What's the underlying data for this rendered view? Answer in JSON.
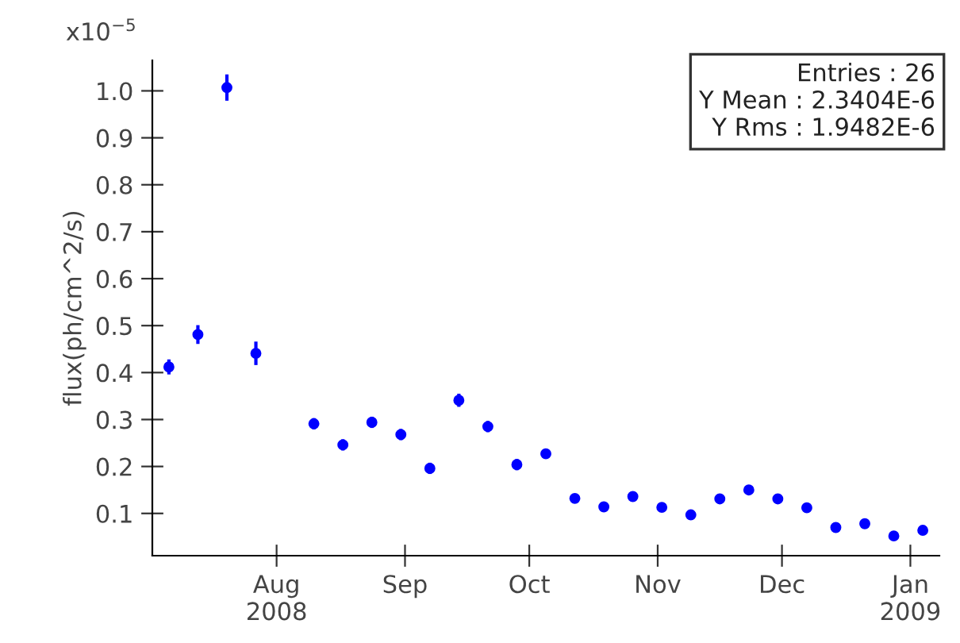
{
  "chart_data": {
    "type": "scatter",
    "ylabel": "flux(ph/cm^2/s)",
    "annotations": [
      "x10$^{−5}$",
      "Entries : 26",
      "Y Mean : 2.3404E-6",
      "Y Rms : 1.9482E-6"
    ],
    "x": [
      "2008-07-06",
      "2008-07-13",
      "2008-07-20",
      "2008-07-27",
      "2008-08-10",
      "2008-08-17",
      "2008-08-24",
      "2008-08-31",
      "2008-09-07",
      "2008-09-14",
      "2008-09-21",
      "2008-09-28",
      "2008-10-05",
      "2008-10-12",
      "2008-10-19",
      "2008-10-26",
      "2008-11-02",
      "2008-11-09",
      "2008-11-16",
      "2008-11-23",
      "2008-11-30",
      "2008-12-07",
      "2008-12-14",
      "2008-12-21",
      "2008-12-28",
      "2009-01-04"
    ],
    "series": [
      {
        "color": "#0000ff",
        "values": [
          0.412,
          0.481,
          1.007,
          0.441,
          0.291,
          0.246,
          0.294,
          0.268,
          0.196,
          0.341,
          0.285,
          0.204,
          0.227,
          0.132,
          0.114,
          0.136,
          0.113,
          0.097,
          0.131,
          0.15,
          0.131,
          0.112,
          0.07,
          0.078,
          0.052,
          0.064
        ],
        "errors": [
          0.016,
          0.02,
          0.028,
          0.025,
          0.012,
          0.012,
          0.012,
          0.012,
          0.012,
          0.014,
          0.012,
          0.012,
          0.01,
          0.008,
          0.008,
          0.008,
          0.008,
          0.008,
          0.008,
          0.008,
          0.008,
          0.008,
          0.007,
          0.007,
          0.007,
          0.007
        ]
      }
    ],
    "xlim": [
      "2008-07-02",
      "2009-01-08"
    ],
    "xticks": [
      {
        "value": "2008-08-01",
        "label": "Aug\n2008"
      },
      {
        "value": "2008-09-01",
        "label": "Sep"
      },
      {
        "value": "2008-10-01",
        "label": "Oct"
      },
      {
        "value": "2008-11-01",
        "label": "Nov"
      },
      {
        "value": "2008-12-01",
        "label": "Dec"
      },
      {
        "value": "2009-01-01",
        "label": "Jan\n2009"
      }
    ],
    "ylim": [
      0.01,
      1.065
    ],
    "yticks": [
      0.1,
      0.2,
      0.3,
      0.4,
      0.5,
      0.6,
      0.7,
      0.8,
      0.9,
      {
        "value": 1,
        "label": "1.0"
      }
    ],
    "grid": false,
    "marker": "circle",
    "line_style": "none"
  }
}
